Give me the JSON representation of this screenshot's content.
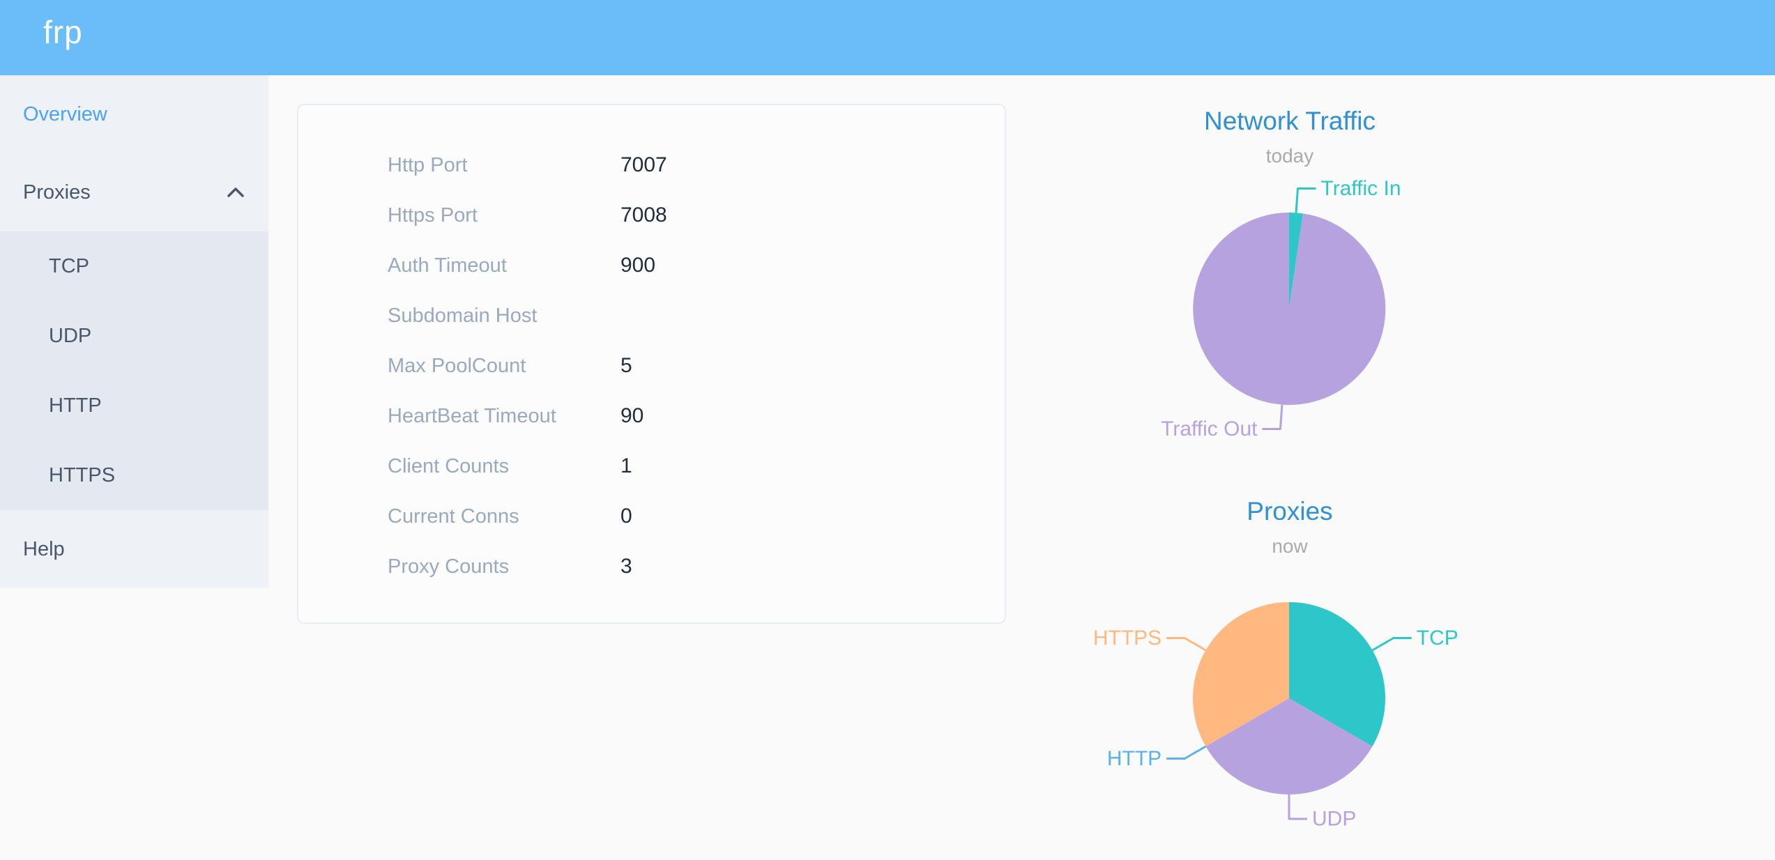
{
  "header": {
    "logo": "frp"
  },
  "sidebar": {
    "overview": "Overview",
    "proxies": "Proxies",
    "submenu": [
      "TCP",
      "UDP",
      "HTTP",
      "HTTPS"
    ],
    "help": "Help"
  },
  "overview_card": {
    "rows": [
      {
        "label": "Http Port",
        "value": "7007"
      },
      {
        "label": "Https Port",
        "value": "7008"
      },
      {
        "label": "Auth Timeout",
        "value": "900"
      },
      {
        "label": "Subdomain Host",
        "value": ""
      },
      {
        "label": "Max PoolCount",
        "value": "5"
      },
      {
        "label": "HeartBeat Timeout",
        "value": "90"
      },
      {
        "label": "Client Counts",
        "value": "1"
      },
      {
        "label": "Current Conns",
        "value": "0"
      },
      {
        "label": "Proxy Counts",
        "value": "3"
      }
    ]
  },
  "chart_data": [
    {
      "type": "pie",
      "title": "Network Traffic",
      "subtitle": "today",
      "legend_position": "none",
      "note": "values are percent of total, estimated from slice angles",
      "series": [
        {
          "name": "Traffic In",
          "value": 2.3,
          "color": "#2ec7c9"
        },
        {
          "name": "Traffic Out",
          "value": 97.7,
          "color": "#b6a2de"
        }
      ]
    },
    {
      "type": "pie",
      "title": "Proxies",
      "subtitle": "now",
      "legend_position": "none",
      "note": "values are proxy counts; total matches Proxy Counts = 3",
      "series": [
        {
          "name": "TCP",
          "value": 1,
          "color": "#2ec7c9"
        },
        {
          "name": "UDP",
          "value": 1,
          "color": "#b6a2de"
        },
        {
          "name": "HTTP",
          "value": 0,
          "color": "#5ab1ef"
        },
        {
          "name": "HTTPS",
          "value": 1,
          "color": "#ffb980"
        }
      ]
    }
  ],
  "colors": {
    "header_bg": "#6abdf9",
    "sidebar_bg": "#eef1f6",
    "submenu_bg": "#e4e8f1",
    "menu_text": "#48576a",
    "menu_active": "#4aa3f8",
    "chart_title": "#2e90d6",
    "card_label": "#99a9bf",
    "card_value": "#1f2d3d"
  }
}
